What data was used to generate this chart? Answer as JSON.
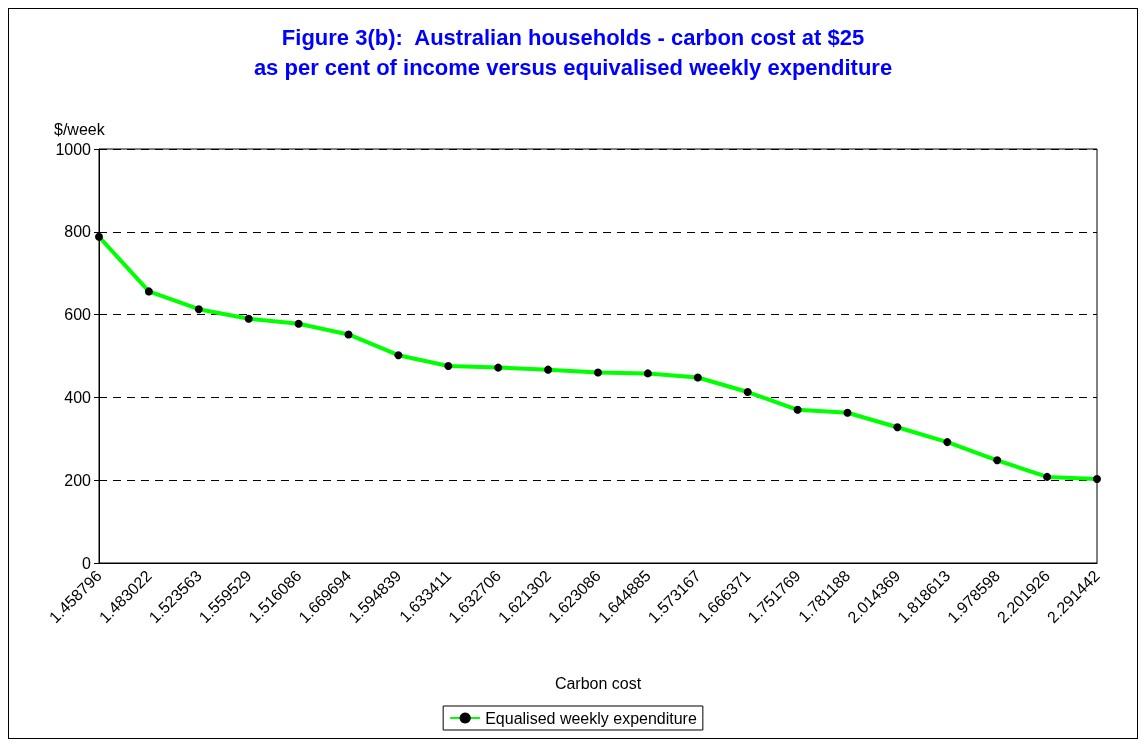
{
  "chart_data": {
    "type": "line",
    "title": "Figure 3(b):  Australian households - carbon cost at $25\nas per cent of income versus equivalised weekly expenditure",
    "xlabel": "Carbon cost",
    "ylabel": "$/week",
    "categories": [
      "1.458796",
      "1.483022",
      "1.523563",
      "1.559529",
      "1.516086",
      "1.669694",
      "1.594839",
      "1.633411",
      "1.632706",
      "1.621302",
      "1.623086",
      "1.644885",
      "1.573167",
      "1.666371",
      "1.751769",
      "1.781188",
      "2.014369",
      "1.818613",
      "1.978598",
      "2.201926",
      "2.291442"
    ],
    "series": [
      {
        "name": "Equalised weekly expenditure",
        "color": "#00ff00",
        "values": [
          788,
          656,
          613,
          590,
          578,
          552,
          502,
          476,
          472,
          467,
          460,
          458,
          448,
          413,
          370,
          363,
          328,
          292,
          248,
          208,
          203
        ]
      }
    ],
    "ylim": [
      0,
      1000
    ],
    "yticks": [
      0,
      200,
      400,
      600,
      800,
      1000
    ],
    "grid": "y",
    "legend": "bottom",
    "marker": "circle",
    "line_style": "solid"
  }
}
